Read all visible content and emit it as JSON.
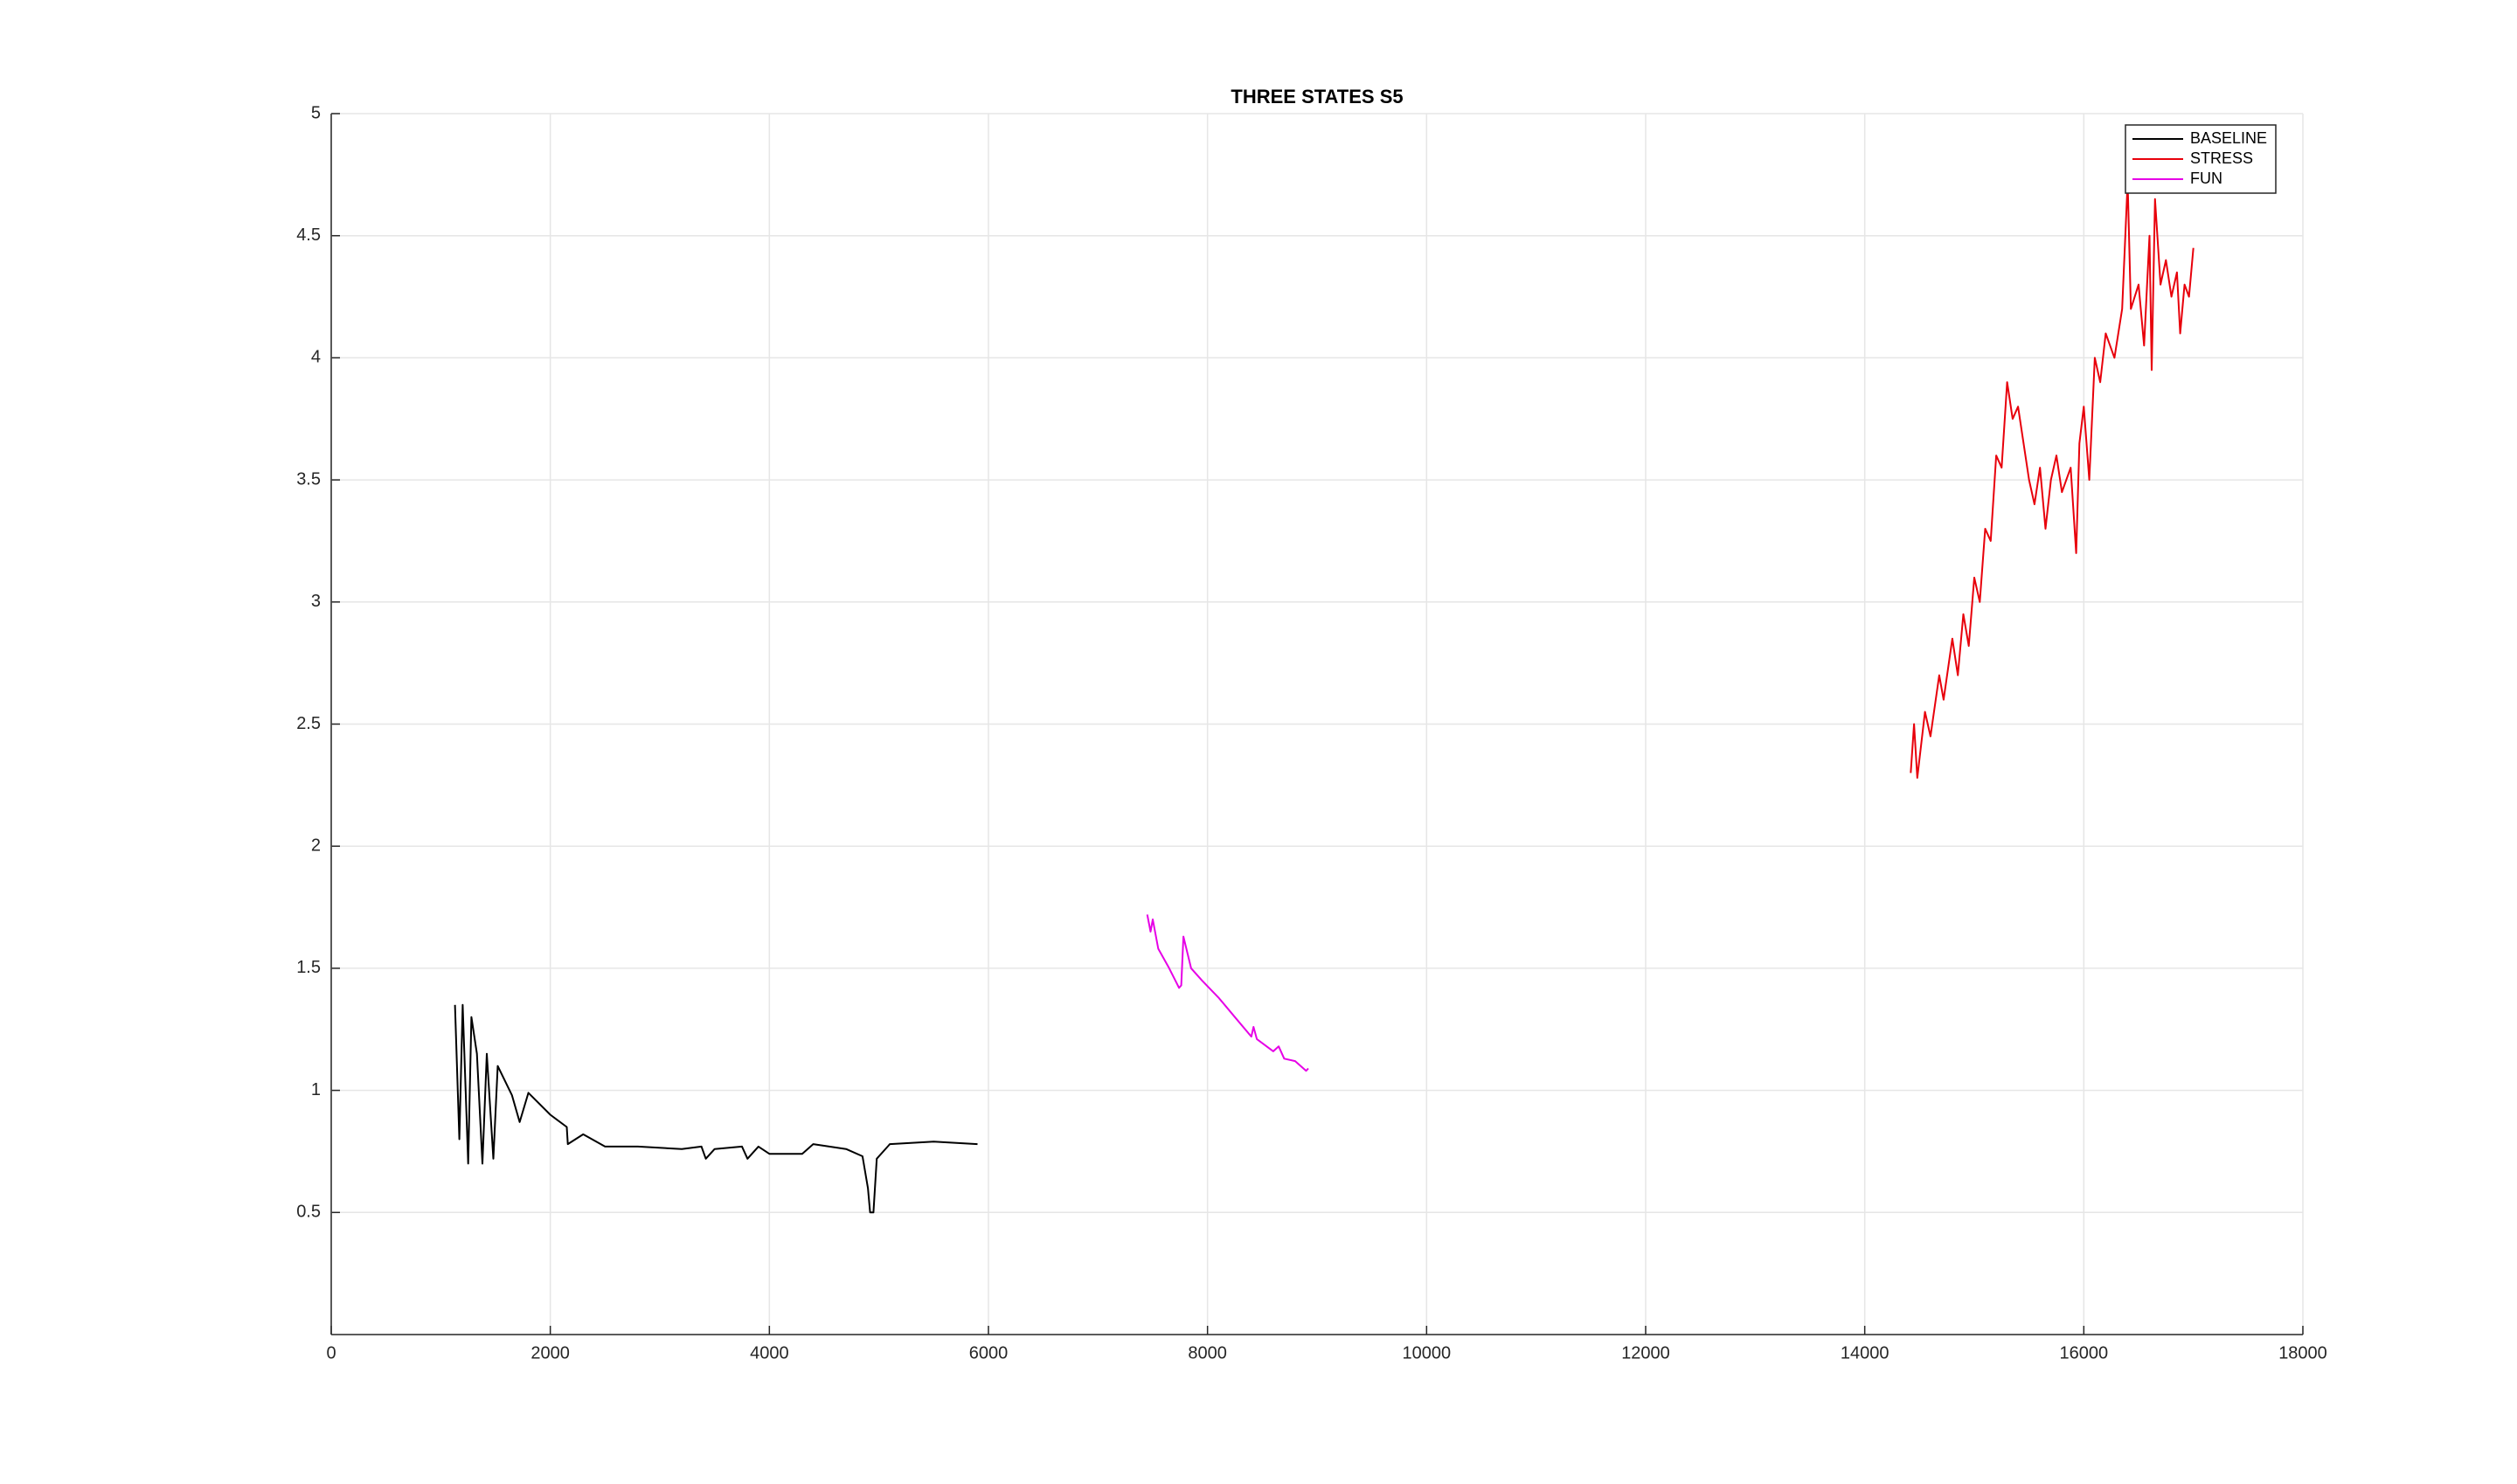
{
  "chart_data": {
    "type": "line",
    "title": "THREE STATES S5",
    "xlim": [
      0,
      18000
    ],
    "xticks": [
      0,
      2000,
      4000,
      6000,
      8000,
      10000,
      12000,
      14000,
      16000,
      18000
    ],
    "ylim": [
      0,
      5
    ],
    "yticks": [
      0.5,
      1,
      1.5,
      2,
      2.5,
      3,
      3.5,
      4,
      4.5,
      5
    ],
    "grid": true,
    "legend": "top-right",
    "series": [
      {
        "name": "BASELINE",
        "color": "#000000",
        "x": [
          1130,
          1170,
          1200,
          1250,
          1280,
          1330,
          1380,
          1420,
          1480,
          1520,
          1650,
          1720,
          1800,
          2000,
          2150,
          2160,
          2300,
          2500,
          2800,
          3200,
          3380,
          3420,
          3500,
          3750,
          3800,
          3900,
          4000,
          4300,
          4400,
          4700,
          4850,
          4900,
          4920,
          4950,
          4980,
          5100,
          5500,
          5900
        ],
        "values": [
          1.35,
          0.8,
          1.35,
          0.7,
          1.3,
          1.15,
          0.7,
          1.15,
          0.72,
          1.1,
          0.98,
          0.87,
          0.99,
          0.9,
          0.85,
          0.78,
          0.82,
          0.77,
          0.77,
          0.76,
          0.77,
          0.72,
          0.76,
          0.77,
          0.72,
          0.77,
          0.74,
          0.74,
          0.78,
          0.76,
          0.73,
          0.6,
          0.5,
          0.5,
          0.72,
          0.78,
          0.79,
          0.78
        ]
      },
      {
        "name": "STRESS",
        "color": "#e8000b",
        "x": [
          14420,
          14450,
          14480,
          14550,
          14600,
          14680,
          14720,
          14800,
          14850,
          14900,
          14950,
          15000,
          15050,
          15100,
          15150,
          15200,
          15250,
          15300,
          15350,
          15400,
          15450,
          15500,
          15550,
          15600,
          15650,
          15700,
          15750,
          15800,
          15880,
          15930,
          15960,
          16000,
          16050,
          16100,
          16150,
          16200,
          16280,
          16350,
          16400,
          16430,
          16500,
          16550,
          16600,
          16620,
          16650,
          16700,
          16750,
          16800,
          16850,
          16880,
          16920,
          16960,
          17000
        ],
        "values": [
          2.3,
          2.5,
          2.28,
          2.55,
          2.45,
          2.7,
          2.6,
          2.85,
          2.7,
          2.95,
          2.82,
          3.1,
          3.0,
          3.3,
          3.25,
          3.6,
          3.55,
          3.9,
          3.75,
          3.8,
          3.65,
          3.5,
          3.4,
          3.55,
          3.3,
          3.5,
          3.6,
          3.45,
          3.55,
          3.2,
          3.65,
          3.8,
          3.5,
          4.0,
          3.9,
          4.1,
          4.0,
          4.2,
          4.72,
          4.2,
          4.3,
          4.05,
          4.5,
          3.95,
          4.65,
          4.3,
          4.4,
          4.25,
          4.35,
          4.1,
          4.3,
          4.25,
          4.45
        ]
      },
      {
        "name": "FUN",
        "color": "#e600e6",
        "x": [
          7450,
          7480,
          7500,
          7550,
          7650,
          7740,
          7760,
          7780,
          7850,
          7950,
          8100,
          8250,
          8400,
          8420,
          8450,
          8600,
          8650,
          8700,
          8800,
          8900,
          8920
        ],
        "values": [
          1.72,
          1.65,
          1.7,
          1.58,
          1.5,
          1.42,
          1.43,
          1.63,
          1.5,
          1.45,
          1.38,
          1.3,
          1.22,
          1.26,
          1.21,
          1.16,
          1.18,
          1.13,
          1.12,
          1.08,
          1.09
        ]
      }
    ]
  }
}
